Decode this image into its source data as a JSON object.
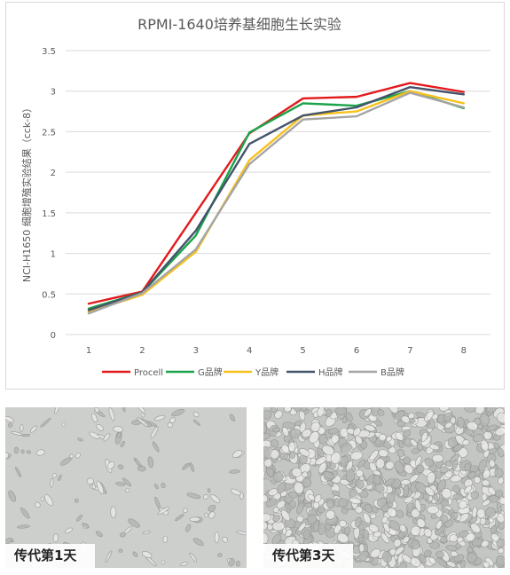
{
  "chart_data": {
    "type": "line",
    "title": "RPMI-1640培养基细胞生长实验",
    "ylabel": "NCI-H1650 细胞增殖实验结果（cck-8）",
    "xlabel": "",
    "x": [
      1,
      2,
      3,
      4,
      5,
      6,
      7,
      8
    ],
    "ylim": [
      0,
      3.5
    ],
    "yticks": [
      0,
      0.5,
      1,
      1.5,
      2,
      2.5,
      3,
      3.5
    ],
    "grid": true,
    "legend": "bottom",
    "series": [
      {
        "name": "Procell",
        "color": "#e31a1c",
        "values": [
          0.38,
          0.53,
          1.5,
          2.48,
          2.91,
          2.93,
          3.1,
          2.99
        ]
      },
      {
        "name": "G品牌",
        "color": "#1aa34a",
        "values": [
          0.32,
          0.52,
          1.22,
          2.49,
          2.85,
          2.82,
          3.0,
          2.79
        ]
      },
      {
        "name": "Y品牌",
        "color": "#f7c11b",
        "values": [
          0.28,
          0.49,
          1.02,
          2.15,
          2.7,
          2.75,
          3.0,
          2.85
        ]
      },
      {
        "name": "H品牌",
        "color": "#44546a",
        "values": [
          0.3,
          0.52,
          1.28,
          2.35,
          2.7,
          2.8,
          3.05,
          2.96
        ]
      },
      {
        "name": "B品牌",
        "color": "#a5a5a5",
        "values": [
          0.26,
          0.51,
          1.05,
          2.1,
          2.65,
          2.69,
          2.98,
          2.8
        ]
      }
    ]
  },
  "photos": {
    "left_caption": "传代第1天",
    "right_caption": "传代第3天"
  }
}
